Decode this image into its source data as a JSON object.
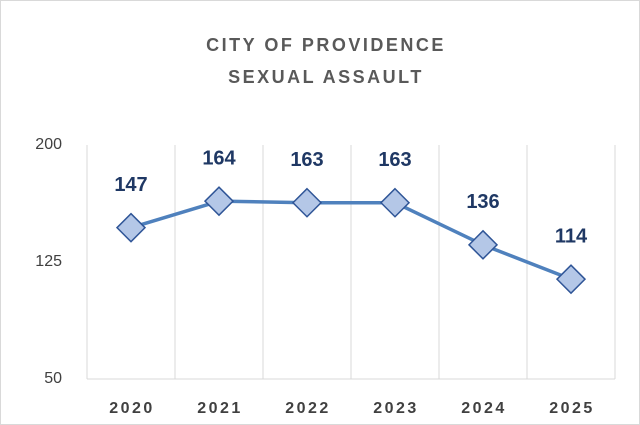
{
  "chart_data": {
    "type": "line",
    "title": [
      "CITY OF PROVIDENCE",
      "SEXUAL ASSAULT"
    ],
    "categories": [
      "2020",
      "2021",
      "2022",
      "2023",
      "2024",
      "2025"
    ],
    "series": [
      {
        "name": "Sexual Assault",
        "color": "#4f81bd",
        "values": [
          147,
          164,
          163,
          163,
          136,
          114
        ]
      }
    ],
    "ylim": [
      50,
      200
    ],
    "yticks": [
      50,
      125,
      200
    ]
  }
}
